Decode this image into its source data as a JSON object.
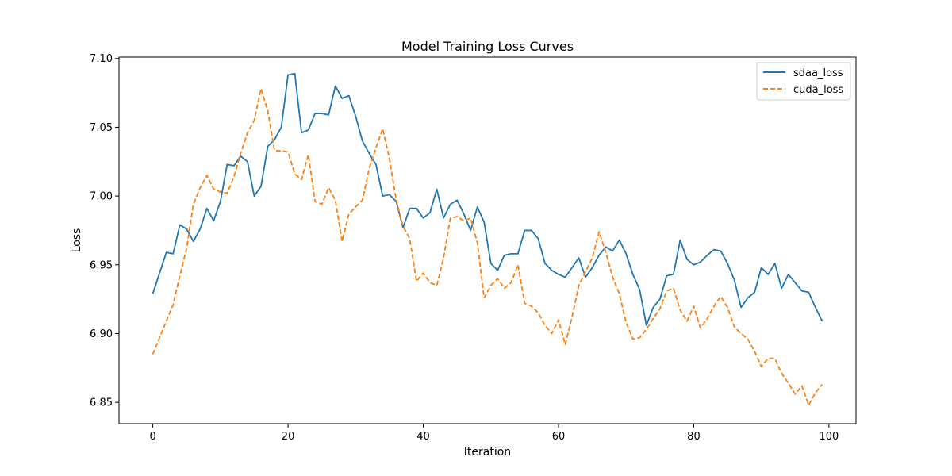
{
  "chart_data": {
    "type": "line",
    "title": "Model Training Loss Curves",
    "xlabel": "Iteration",
    "ylabel": "Loss",
    "xlim": [
      -5,
      104
    ],
    "ylim": [
      6.8345,
      7.101
    ],
    "xticks": [
      0,
      20,
      40,
      60,
      80,
      100
    ],
    "yticks": [
      6.85,
      6.9,
      6.95,
      7.0,
      7.05,
      7.1
    ],
    "xtick_labels": [
      "0",
      "20",
      "40",
      "60",
      "80",
      "100"
    ],
    "ytick_labels": [
      "6.85",
      "6.90",
      "6.95",
      "7.00",
      "7.05",
      "7.10"
    ],
    "grid": false,
    "legend_position": "top-right",
    "series": [
      {
        "name": "sdaa_loss",
        "color": "#1f77b4",
        "dash": "solid",
        "x": [
          0,
          1,
          2,
          3,
          4,
          5,
          6,
          7,
          8,
          9,
          10,
          11,
          12,
          13,
          14,
          15,
          16,
          17,
          18,
          19,
          20,
          21,
          22,
          23,
          24,
          25,
          26,
          27,
          28,
          29,
          30,
          31,
          32,
          33,
          34,
          35,
          36,
          37,
          38,
          39,
          40,
          41,
          42,
          43,
          44,
          45,
          46,
          47,
          48,
          49,
          50,
          51,
          52,
          53,
          54,
          55,
          56,
          57,
          58,
          59,
          60,
          61,
          62,
          63,
          64,
          65,
          66,
          67,
          68,
          69,
          70,
          71,
          72,
          73,
          74,
          75,
          76,
          77,
          78,
          79,
          80,
          81,
          82,
          83,
          84,
          85,
          86,
          87,
          88,
          89,
          90,
          91,
          92,
          93,
          94,
          95,
          96,
          97,
          98,
          99
        ],
        "values": [
          6.929,
          6.944,
          6.959,
          6.958,
          6.979,
          6.976,
          6.967,
          6.976,
          6.991,
          6.982,
          6.996,
          7.023,
          7.022,
          7.029,
          7.025,
          7.0,
          7.007,
          7.036,
          7.041,
          7.05,
          7.088,
          7.089,
          7.046,
          7.048,
          7.06,
          7.06,
          7.059,
          7.08,
          7.071,
          7.073,
          7.058,
          7.04,
          7.031,
          7.023,
          7.0,
          7.001,
          6.996,
          6.977,
          6.991,
          6.991,
          6.984,
          6.988,
          7.005,
          6.984,
          6.994,
          6.997,
          6.987,
          6.975,
          6.992,
          6.981,
          6.951,
          6.946,
          6.957,
          6.958,
          6.958,
          6.975,
          6.975,
          6.969,
          6.951,
          6.946,
          6.943,
          6.941,
          6.948,
          6.955,
          6.941,
          6.948,
          6.957,
          6.963,
          6.96,
          6.968,
          6.958,
          6.943,
          6.932,
          6.906,
          6.919,
          6.925,
          6.942,
          6.943,
          6.968,
          6.954,
          6.95,
          6.952,
          6.957,
          6.961,
          6.96,
          6.951,
          6.939,
          6.919,
          6.926,
          6.93,
          6.948,
          6.943,
          6.951,
          6.933,
          6.943,
          6.937,
          6.931,
          6.93,
          6.919,
          6.909
        ]
      },
      {
        "name": "cuda_loss",
        "color": "#ff7f0e",
        "dash": "dashed",
        "x": [
          0,
          1,
          2,
          3,
          4,
          5,
          6,
          7,
          8,
          9,
          10,
          11,
          12,
          13,
          14,
          15,
          16,
          17,
          18,
          19,
          20,
          21,
          22,
          23,
          24,
          25,
          26,
          27,
          28,
          29,
          30,
          31,
          32,
          33,
          34,
          35,
          36,
          37,
          38,
          39,
          40,
          41,
          42,
          43,
          44,
          45,
          46,
          47,
          48,
          49,
          50,
          51,
          52,
          53,
          54,
          55,
          56,
          57,
          58,
          59,
          60,
          61,
          62,
          63,
          64,
          65,
          66,
          67,
          68,
          69,
          70,
          71,
          72,
          73,
          74,
          75,
          76,
          77,
          78,
          79,
          80,
          81,
          82,
          83,
          84,
          85,
          86,
          87,
          88,
          89,
          90,
          91,
          92,
          93,
          94,
          95,
          96,
          97,
          98,
          99
        ],
        "values": [
          6.885,
          6.897,
          6.909,
          6.921,
          6.942,
          6.962,
          6.994,
          7.006,
          7.015,
          7.005,
          7.003,
          7.002,
          7.014,
          7.031,
          7.046,
          7.055,
          7.078,
          7.062,
          7.033,
          7.033,
          7.032,
          7.016,
          7.012,
          7.03,
          6.996,
          6.994,
          7.006,
          6.997,
          6.967,
          6.987,
          6.992,
          6.997,
          7.02,
          7.035,
          7.049,
          7.027,
          6.997,
          6.978,
          6.969,
          6.938,
          6.944,
          6.937,
          6.935,
          6.955,
          6.984,
          6.985,
          6.982,
          6.984,
          6.966,
          6.926,
          6.935,
          6.94,
          6.933,
          6.937,
          6.95,
          6.922,
          6.92,
          6.915,
          6.906,
          6.9,
          6.91,
          6.892,
          6.912,
          6.935,
          6.945,
          6.955,
          6.974,
          6.959,
          6.941,
          6.929,
          6.908,
          6.896,
          6.897,
          6.903,
          6.911,
          6.918,
          6.931,
          6.933,
          6.917,
          6.909,
          6.92,
          6.904,
          6.911,
          6.92,
          6.927,
          6.919,
          6.905,
          6.9,
          6.896,
          6.887,
          6.876,
          6.882,
          6.882,
          6.871,
          6.864,
          6.856,
          6.862,
          6.848,
          6.857,
          6.863
        ]
      }
    ]
  }
}
